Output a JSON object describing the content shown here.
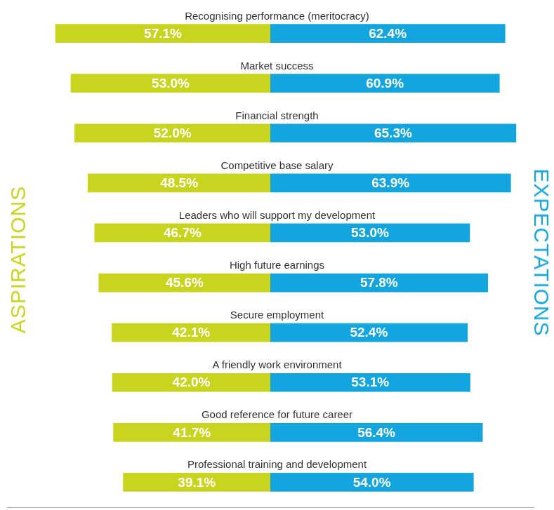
{
  "chart_data": {
    "type": "bar",
    "orientation": "horizontal",
    "categories": [
      "Recognising performance (meritocracy)",
      "Market success",
      "Financial strength",
      "Competitive base salary",
      "Leaders who will support my development",
      "High future earnings",
      "Secure employment",
      "A friendly work environment",
      "Good reference for future career",
      "Professional training and development"
    ],
    "series": [
      {
        "name": "ASPIRATIONS",
        "color": "#c8d41e",
        "values": [
          57.1,
          53.0,
          52.0,
          48.5,
          46.7,
          45.6,
          42.1,
          42.0,
          41.7,
          39.1
        ],
        "value_labels": [
          "57.1%",
          "53.0%",
          "52.0%",
          "48.5%",
          "46.7%",
          "45.6%",
          "42.1%",
          "42.0%",
          "41.7%",
          "39.1%"
        ]
      },
      {
        "name": "EXPECTATIONS",
        "color": "#12a5e0",
        "values": [
          62.4,
          60.9,
          65.3,
          63.9,
          53.0,
          57.8,
          52.4,
          53.1,
          56.4,
          54.0
        ],
        "value_labels": [
          "62.4%",
          "60.9%",
          "65.3%",
          "63.9%",
          "53.0%",
          "57.8%",
          "52.4%",
          "53.1%",
          "56.4%",
          "54.0%"
        ]
      }
    ],
    "xlim": [
      0,
      70
    ],
    "grid": false,
    "tick_labels": false,
    "data_labels": true
  }
}
